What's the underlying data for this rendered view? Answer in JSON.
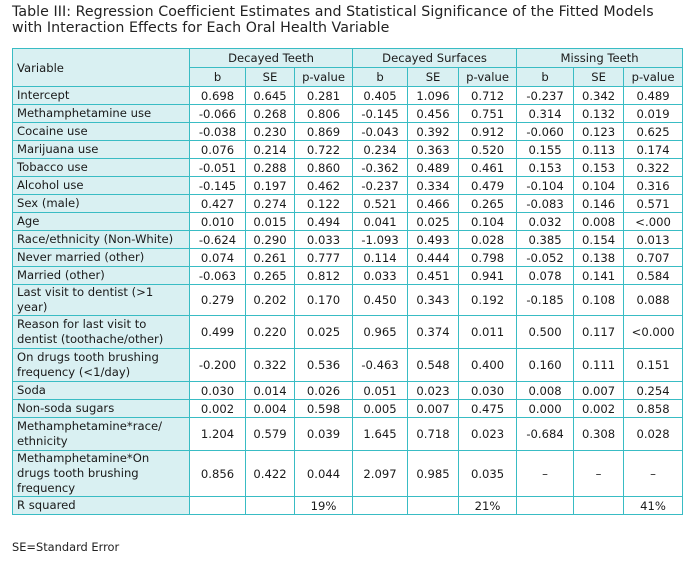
{
  "title": "Table III: Regression Coefficient Estimates and Statistical Significance of the Fitted Models with Interaction Effects for Each Oral Health Variable",
  "table": {
    "variable_header": "Variable",
    "groups": [
      "Decayed Teeth",
      "Decayed Surfaces",
      "Missing Teeth"
    ],
    "sub_headers": [
      "b",
      "SE",
      "p-value",
      "b",
      "SE",
      "p-value",
      "b",
      "SE",
      "p-value"
    ],
    "rows": [
      {
        "label": "Intercept",
        "values": [
          "0.698",
          "0.645",
          "0.281",
          "0.405",
          "1.096",
          "0.712",
          "-0.237",
          "0.342",
          "0.489"
        ]
      },
      {
        "label": "Methamphetamine use",
        "values": [
          "-0.066",
          "0.268",
          "0.806",
          "-0.145",
          "0.456",
          "0.751",
          "0.314",
          "0.132",
          "0.019"
        ]
      },
      {
        "label": "Cocaine use",
        "values": [
          "-0.038",
          "0.230",
          "0.869",
          "-0.043",
          "0.392",
          "0.912",
          "-0.060",
          "0.123",
          "0.625"
        ]
      },
      {
        "label": "Marijuana use",
        "values": [
          "0.076",
          "0.214",
          "0.722",
          "0.234",
          "0.363",
          "0.520",
          "0.155",
          "0.113",
          "0.174"
        ]
      },
      {
        "label": "Tobacco use",
        "values": [
          "-0.051",
          "0.288",
          "0.860",
          "-0.362",
          "0.489",
          "0.461",
          "0.153",
          "0.153",
          "0.322"
        ]
      },
      {
        "label": "Alcohol use",
        "values": [
          "-0.145",
          "0.197",
          "0.462",
          "-0.237",
          "0.334",
          "0.479",
          "-0.104",
          "0.104",
          "0.316"
        ]
      },
      {
        "label": "Sex (male)",
        "values": [
          "0.427",
          "0.274",
          "0.122",
          "0.521",
          "0.466",
          "0.265",
          "-0.083",
          "0.146",
          "0.571"
        ]
      },
      {
        "label": "Age",
        "values": [
          "0.010",
          "0.015",
          "0.494",
          "0.041",
          "0.025",
          "0.104",
          "0.032",
          "0.008",
          "<.000"
        ]
      },
      {
        "label": "Race/ethnicity (Non-White)",
        "values": [
          "-0.624",
          "0.290",
          "0.033",
          "-1.093",
          "0.493",
          "0.028",
          "0.385",
          "0.154",
          "0.013"
        ]
      },
      {
        "label": "Never married (other)",
        "values": [
          "0.074",
          "0.261",
          "0.777",
          "0.114",
          "0.444",
          "0.798",
          "-0.052",
          "0.138",
          "0.707"
        ]
      },
      {
        "label": "Married (other)",
        "values": [
          "-0.063",
          "0.265",
          "0.812",
          "0.033",
          "0.451",
          "0.941",
          "0.078",
          "0.141",
          "0.584"
        ]
      },
      {
        "label": "Last visit to dentist (>1 year)",
        "values": [
          "0.279",
          "0.202",
          "0.170",
          "0.450",
          "0.343",
          "0.192",
          "-0.185",
          "0.108",
          "0.088"
        ]
      },
      {
        "label": "Reason for last visit to dentist (toothache/other)",
        "tall": true,
        "values": [
          "0.499",
          "0.220",
          "0.025",
          "0.965",
          "0.374",
          "0.011",
          "0.500",
          "0.117",
          "<0.000"
        ]
      },
      {
        "label": "On drugs tooth brushing frequency (<1/day)",
        "tall": true,
        "values": [
          "-0.200",
          "0.322",
          "0.536",
          "-0.463",
          "0.548",
          "0.400",
          "0.160",
          "0.111",
          "0.151"
        ]
      },
      {
        "label": "Soda",
        "values": [
          "0.030",
          "0.014",
          "0.026",
          "0.051",
          "0.023",
          "0.030",
          "0.008",
          "0.007",
          "0.254"
        ]
      },
      {
        "label": "Non-soda sugars",
        "values": [
          "0.002",
          "0.004",
          "0.598",
          "0.005",
          "0.007",
          "0.475",
          "0.000",
          "0.002",
          "0.858"
        ]
      },
      {
        "label": "Methamphetamine*race/ ethnicity",
        "tall": true,
        "values": [
          "1.204",
          "0.579",
          "0.039",
          "1.645",
          "0.718",
          "0.023",
          "-0.684",
          "0.308",
          "0.028"
        ]
      },
      {
        "label": "Methamphetamine*On drugs tooth brushing frequency",
        "tall": true,
        "values": [
          "0.856",
          "0.422",
          "0.044",
          "2.097",
          "0.985",
          "0.035",
          "–",
          "–",
          "–"
        ]
      },
      {
        "label": "R squared",
        "values": [
          "",
          "",
          "19%",
          "",
          "",
          "21%",
          "",
          "",
          "41%"
        ]
      }
    ]
  },
  "footnote": "SE=Standard Error",
  "colors": {
    "border": "#39bcc4",
    "header_bg": "#d9f0f2"
  }
}
